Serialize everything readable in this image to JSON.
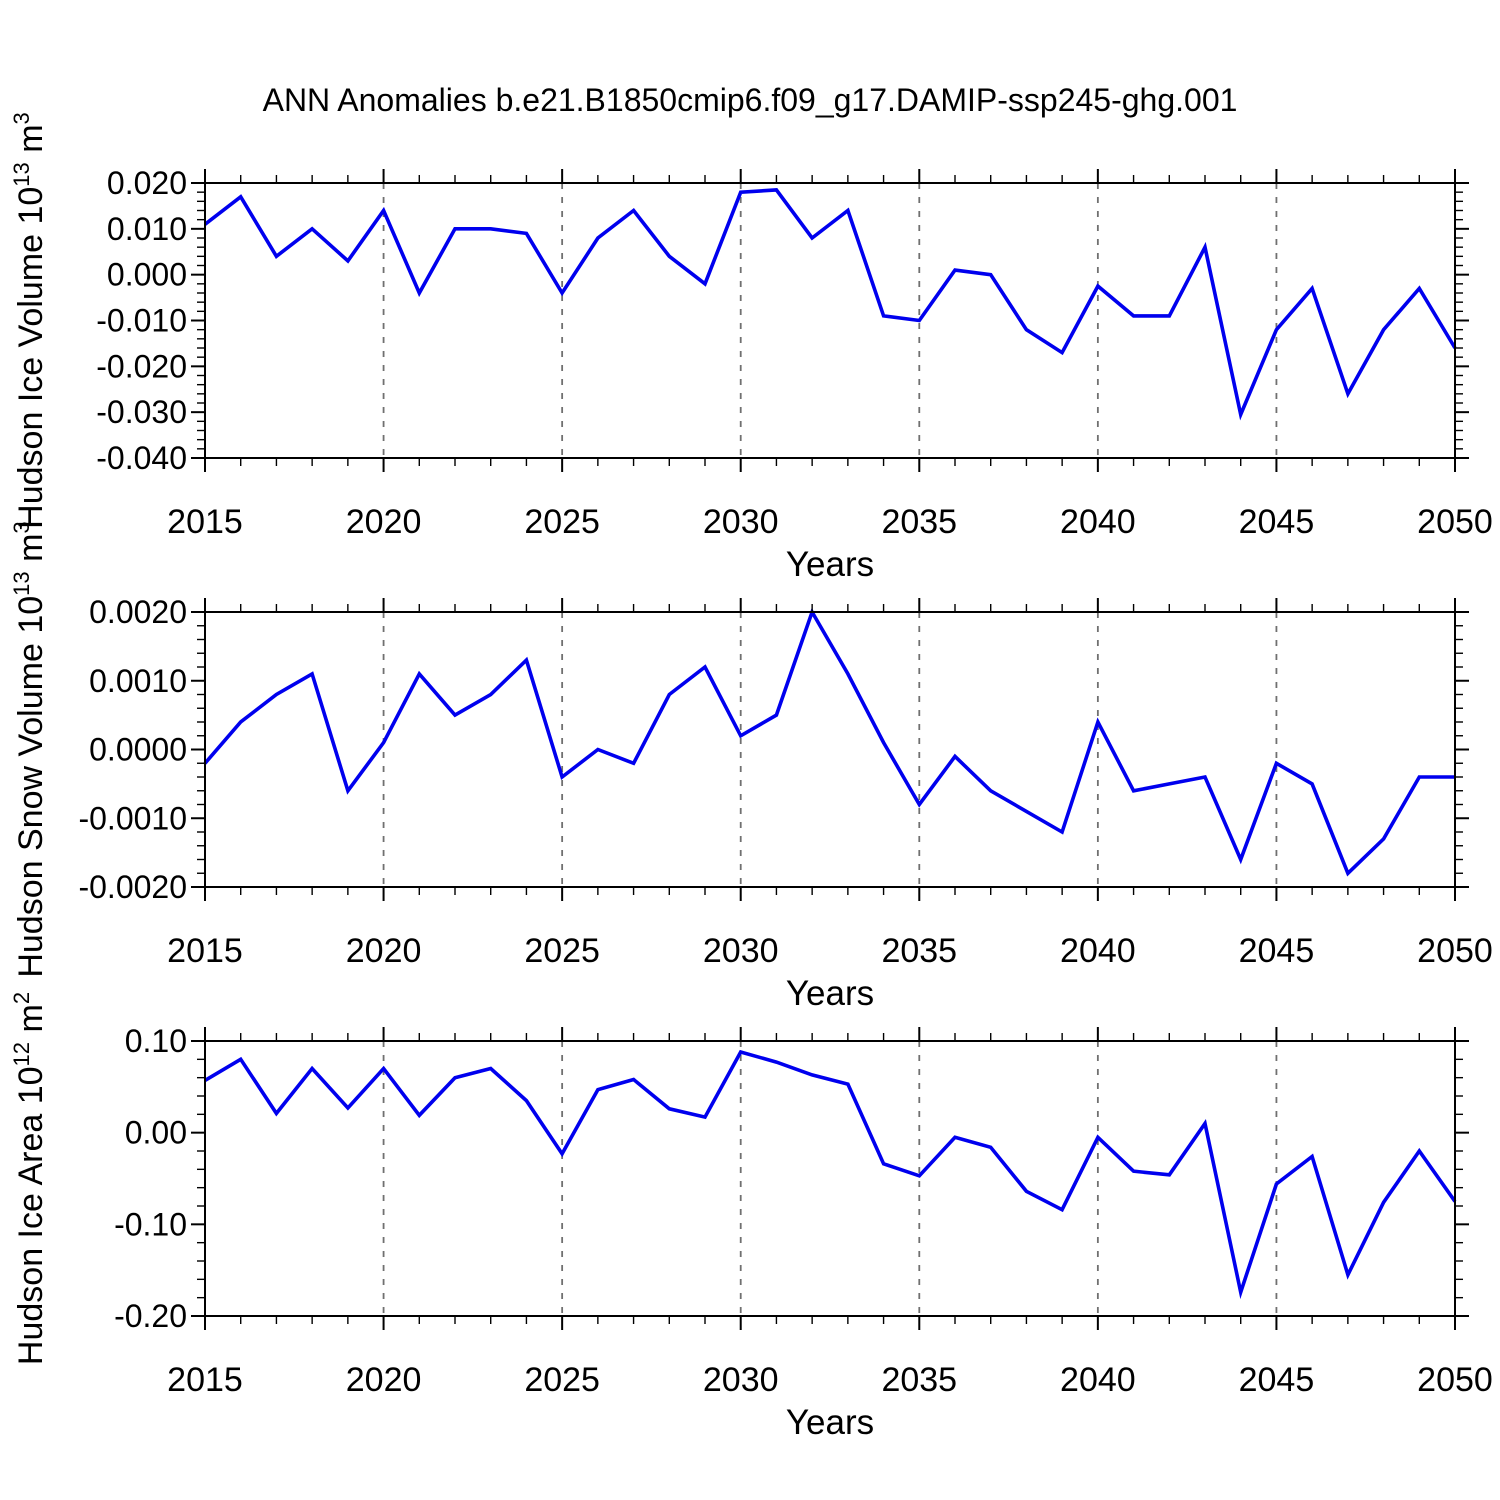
{
  "title": "ANN Anomalies b.e21.B1850cmip6.f09_g17.DAMIP-ssp245-ghg.001",
  "colors": {
    "line": "#0000EE",
    "grid": "#707070",
    "axis": "#000000",
    "text": "#000000"
  },
  "chart_data": [
    {
      "type": "line",
      "title": "ANN Anomalies b.e21.B1850cmip6.f09_g17.DAMIP-ssp245-ghg.001",
      "ylabel": "Hudson Ice Volume 10^13 m^3",
      "ylabel_segments": [
        {
          "t": "Hudson Ice Volume 10"
        },
        {
          "t": "13",
          "sup": true
        },
        {
          "t": " m"
        },
        {
          "t": "3",
          "sup": true
        }
      ],
      "xlabel": "Years",
      "xlim": [
        2015,
        2050
      ],
      "ylim": [
        -0.04,
        0.02
      ],
      "xticks": [
        2015,
        2020,
        2025,
        2030,
        2035,
        2040,
        2045,
        2050
      ],
      "grid_years": [
        2020,
        2025,
        2030,
        2035,
        2040,
        2045
      ],
      "x_minor_step": 1,
      "y_minor_step": 0.002,
      "yticks": [
        0.02,
        0.01,
        0.0,
        -0.01,
        -0.02,
        -0.03,
        -0.04
      ],
      "ytick_labels": [
        "0.020",
        "0.010",
        "0.000",
        "-0.010",
        "-0.020",
        "-0.030",
        "-0.040"
      ],
      "x": [
        2015,
        2016,
        2017,
        2018,
        2019,
        2020,
        2021,
        2022,
        2023,
        2024,
        2025,
        2026,
        2027,
        2028,
        2029,
        2030,
        2031,
        2032,
        2033,
        2034,
        2035,
        2036,
        2037,
        2038,
        2039,
        2040,
        2041,
        2042,
        2043,
        2044,
        2045,
        2046,
        2047,
        2048,
        2049,
        2050
      ],
      "y": [
        0.011,
        0.017,
        0.004,
        0.01,
        0.003,
        0.014,
        -0.004,
        0.01,
        0.01,
        0.009,
        -0.004,
        0.008,
        0.014,
        0.004,
        -0.002,
        0.018,
        0.0185,
        0.008,
        0.014,
        -0.009,
        -0.01,
        0.001,
        0.0,
        -0.012,
        -0.017,
        -0.0025,
        -0.009,
        -0.009,
        0.006,
        -0.0305,
        -0.012,
        -0.003,
        -0.026,
        -0.012,
        -0.003,
        -0.016
      ]
    },
    {
      "type": "line",
      "ylabel": "Hudson Snow Volume 10^13 m^3",
      "ylabel_segments": [
        {
          "t": "Hudson Snow Volume 10"
        },
        {
          "t": "13",
          "sup": true
        },
        {
          "t": " m"
        },
        {
          "t": "3",
          "sup": true
        }
      ],
      "xlabel": "Years",
      "xlim": [
        2015,
        2050
      ],
      "ylim": [
        -0.002,
        0.002
      ],
      "xticks": [
        2015,
        2020,
        2025,
        2030,
        2035,
        2040,
        2045,
        2050
      ],
      "grid_years": [
        2020,
        2025,
        2030,
        2035,
        2040,
        2045
      ],
      "x_minor_step": 1,
      "y_minor_step": 0.0002,
      "yticks": [
        0.002,
        0.001,
        0.0,
        -0.001,
        -0.002
      ],
      "ytick_labels": [
        "0.0020",
        "0.0010",
        "0.0000",
        "-0.0010",
        "-0.0020"
      ],
      "x": [
        2015,
        2016,
        2017,
        2018,
        2019,
        2020,
        2021,
        2022,
        2023,
        2024,
        2025,
        2026,
        2027,
        2028,
        2029,
        2030,
        2031,
        2032,
        2033,
        2034,
        2035,
        2036,
        2037,
        2038,
        2039,
        2040,
        2041,
        2042,
        2043,
        2044,
        2045,
        2046,
        2047,
        2048,
        2049,
        2050
      ],
      "y": [
        -0.0002,
        0.0004,
        0.0008,
        0.0011,
        -0.0006,
        0.0001,
        0.0011,
        0.0005,
        0.0008,
        0.0013,
        -0.0004,
        0.0,
        -0.0002,
        0.0008,
        0.0012,
        0.0002,
        0.0005,
        0.002,
        0.0011,
        0.0001,
        -0.0008,
        -0.0001,
        -0.0006,
        -0.0009,
        -0.0012,
        0.0004,
        -0.0006,
        -0.0005,
        -0.0004,
        -0.0016,
        -0.0002,
        -0.0005,
        -0.0018,
        -0.0013,
        -0.0004,
        -0.0004
      ]
    },
    {
      "type": "line",
      "ylabel": "Hudson Ice Area 10^12 m^2",
      "ylabel_segments": [
        {
          "t": "Hudson Ice Area 10"
        },
        {
          "t": "12",
          "sup": true
        },
        {
          "t": " m"
        },
        {
          "t": "2",
          "sup": true
        }
      ],
      "xlabel": "Years",
      "xlim": [
        2015,
        2050
      ],
      "ylim": [
        -0.2,
        0.1
      ],
      "xticks": [
        2015,
        2020,
        2025,
        2030,
        2035,
        2040,
        2045,
        2050
      ],
      "grid_years": [
        2020,
        2025,
        2030,
        2035,
        2040,
        2045
      ],
      "x_minor_step": 1,
      "y_minor_step": 0.02,
      "yticks": [
        0.1,
        0.0,
        -0.1,
        -0.2
      ],
      "ytick_labels": [
        "0.10",
        "0.00",
        "-0.10",
        "-0.20"
      ],
      "x": [
        2015,
        2016,
        2017,
        2018,
        2019,
        2020,
        2021,
        2022,
        2023,
        2024,
        2025,
        2026,
        2027,
        2028,
        2029,
        2030,
        2031,
        2032,
        2033,
        2034,
        2035,
        2036,
        2037,
        2038,
        2039,
        2040,
        2041,
        2042,
        2043,
        2044,
        2045,
        2046,
        2047,
        2048,
        2049,
        2050
      ],
      "y": [
        0.057,
        0.08,
        0.021,
        0.07,
        0.027,
        0.07,
        0.019,
        0.06,
        0.07,
        0.035,
        -0.023,
        0.047,
        0.058,
        0.026,
        0.017,
        0.088,
        0.077,
        0.063,
        0.053,
        -0.034,
        -0.047,
        -0.005,
        -0.016,
        -0.064,
        -0.084,
        -0.005,
        -0.042,
        -0.046,
        0.01,
        -0.174,
        -0.056,
        -0.026,
        -0.155,
        -0.076,
        -0.02,
        -0.075
      ]
    }
  ]
}
